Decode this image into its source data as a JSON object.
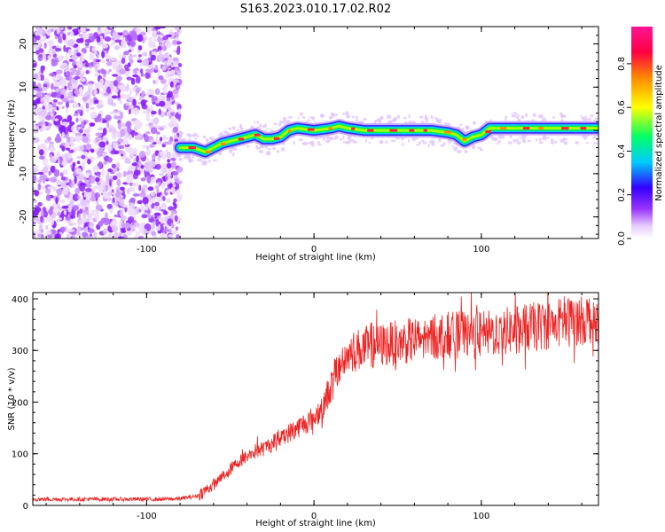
{
  "title": "S163.2023.010.17.02.R02",
  "chart_data": [
    {
      "type": "heatmap",
      "xlabel": "Height of straight line (km)",
      "ylabel": "Frequency (Hz)",
      "xlim": [
        -168,
        170
      ],
      "ylim": [
        -25,
        24
      ],
      "x_ticks": [
        -100,
        0,
        100
      ],
      "y_ticks": [
        -20,
        -10,
        0,
        10,
        20
      ],
      "colorbar": {
        "label": "Normalized spectral amplitude",
        "range": [
          0,
          0.97
        ],
        "ticks": [
          0.0,
          0.2,
          0.4,
          0.6,
          0.8
        ],
        "colormap": [
          "#ffffff",
          "#e6ccff",
          "#9933ff",
          "#3300ff",
          "#00ccff",
          "#00ff66",
          "#ffff00",
          "#ff8800",
          "#ff0044",
          "#ff1493"
        ]
      },
      "noise_region": {
        "x": [
          -168,
          -80
        ],
        "y": [
          -25,
          24
        ]
      },
      "ridge": {
        "x": [
          -80,
          -72,
          -65,
          -55,
          -45,
          -40,
          -35,
          -30,
          -25,
          -20,
          -15,
          -10,
          0,
          10,
          15,
          20,
          30,
          40,
          50,
          60,
          70,
          80,
          85,
          90,
          95,
          100,
          105,
          110,
          120,
          130,
          140,
          150,
          160,
          170
        ],
        "freq": [
          -4,
          -4,
          -5,
          -3,
          -2,
          -1.5,
          -1,
          -2,
          -2,
          -1.5,
          0,
          0.5,
          0,
          0.5,
          1,
          0.5,
          0,
          0,
          0,
          0,
          0,
          -0.5,
          -1,
          -2.5,
          -1.5,
          -1,
          0.5,
          0.5,
          0.5,
          0.5,
          0.5,
          0.5,
          0.5,
          0.5
        ]
      }
    },
    {
      "type": "line",
      "xlabel": "Height of straight line (km)",
      "ylabel": "SNR (10 * v/v)",
      "xlim": [
        -168,
        170
      ],
      "ylim": [
        0,
        412
      ],
      "x_ticks": [
        -100,
        0,
        100
      ],
      "y_ticks": [
        0,
        100,
        200,
        300,
        400
      ],
      "color": "#ee2222",
      "series": [
        {
          "x": [
            -168,
            -150,
            -130,
            -110,
            -90,
            -80,
            -70,
            -60,
            -55,
            -50,
            -45,
            -40,
            -35,
            -30,
            -25,
            -20,
            -15,
            -10,
            -5,
            0,
            5,
            10,
            15,
            20,
            25,
            30,
            40,
            50,
            60,
            70,
            80,
            90,
            100,
            110,
            120,
            130,
            140,
            150,
            160,
            170
          ],
          "y": [
            12,
            12,
            12,
            12,
            12,
            13,
            18,
            40,
            55,
            70,
            85,
            95,
            105,
            110,
            120,
            135,
            140,
            150,
            160,
            170,
            190,
            230,
            270,
            290,
            300,
            305,
            310,
            315,
            320,
            325,
            330,
            330,
            330,
            335,
            340,
            345,
            350,
            355,
            360,
            365
          ]
        }
      ]
    }
  ]
}
